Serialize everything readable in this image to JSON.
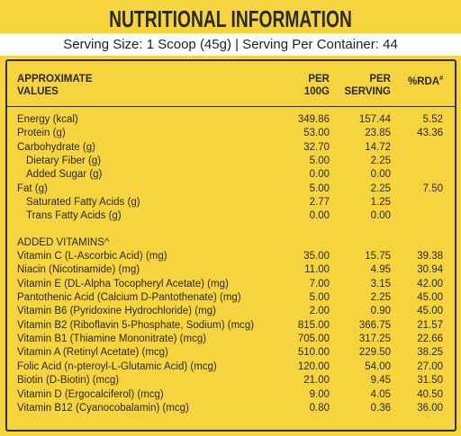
{
  "title": "NUTRITIONAL INFORMATION",
  "serving": "Serving Size: 1 Scoop (45g) | Serving Per Container: 44",
  "table": {
    "header": {
      "name": [
        "APPROXIMATE",
        "VALUES"
      ],
      "per100": [
        "PER",
        "100G"
      ],
      "serving": [
        "PER",
        "SERVING"
      ],
      "rda": {
        "text": "%RDA",
        "sup": "#"
      }
    },
    "rows": [
      [
        "Energy (kcal)",
        "349.86",
        "157.44",
        "5.52"
      ],
      [
        "Protein (g)",
        "53.00",
        "23.85",
        "43.36"
      ],
      [
        "Carbohydrate (g)",
        "32.70",
        "14.72"
      ],
      [
        "Dietary Fiber (g)",
        "5.00",
        "2.25"
      ],
      [
        "Added Sugar (g)",
        "0.00",
        "0.00"
      ],
      [
        "Fat (g)",
        "5.00",
        "2.25",
        "7.50"
      ],
      [
        "Saturated Fatty Acids (g)",
        "2.77",
        "1.25"
      ],
      [
        "Trans Fatty Acids (g)",
        "0.00",
        "0.00"
      ]
    ],
    "vitamins_heading": "ADDED VITAMINS^",
    "vitamins": [
      [
        "Vitamin C (L-Ascorbic Acid) (mg)",
        "35.00",
        "15.75",
        "39.38"
      ],
      [
        "Niacin (Nicotinamide) (mg)",
        "11.00",
        "4.95",
        "30.94"
      ],
      [
        "Vitamin E (DL-Alpha Tocopheryl Acetate) (mg)",
        "7.00",
        "3.15",
        "42.00"
      ],
      [
        "Pantothenic Acid (Calcium D-Pantothenate) (mg)",
        "5.00",
        "2.25",
        "45.00"
      ],
      [
        "Vitamin B6 (Pyridoxine Hydrochloride) (mg)",
        "2.00",
        "0.90",
        "45.00"
      ],
      [
        "Vitamin B2 (Riboflavin 5-Phosphate, Sodium) (mcg)",
        "815.00",
        "366.75",
        "21.57"
      ],
      [
        "Vitamin B1 (Thiamine Mononitrate) (mcg)",
        "705.00",
        "317.25",
        "22.66"
      ],
      [
        "Vitamin A (Retinyl Acetate) (mcg)",
        "510.00",
        "229.50",
        "38.25"
      ],
      [
        "Folic Acid (n-pteroyl-L-Glutamic Acid) (mcg)",
        "120.00",
        "54.00",
        "27.00"
      ],
      [
        "Biotin (D-Biotin) (mcg)",
        "21.00",
        "9.45",
        "31.50"
      ],
      [
        "Vitamin D (Ergocalciferol) (mcg)",
        "9.00",
        "4.05",
        "40.50"
      ],
      [
        "Vitamin B12 (Cyanocobalamin) (mcg)",
        "0.80",
        "0.36",
        "36.00"
      ]
    ]
  }
}
